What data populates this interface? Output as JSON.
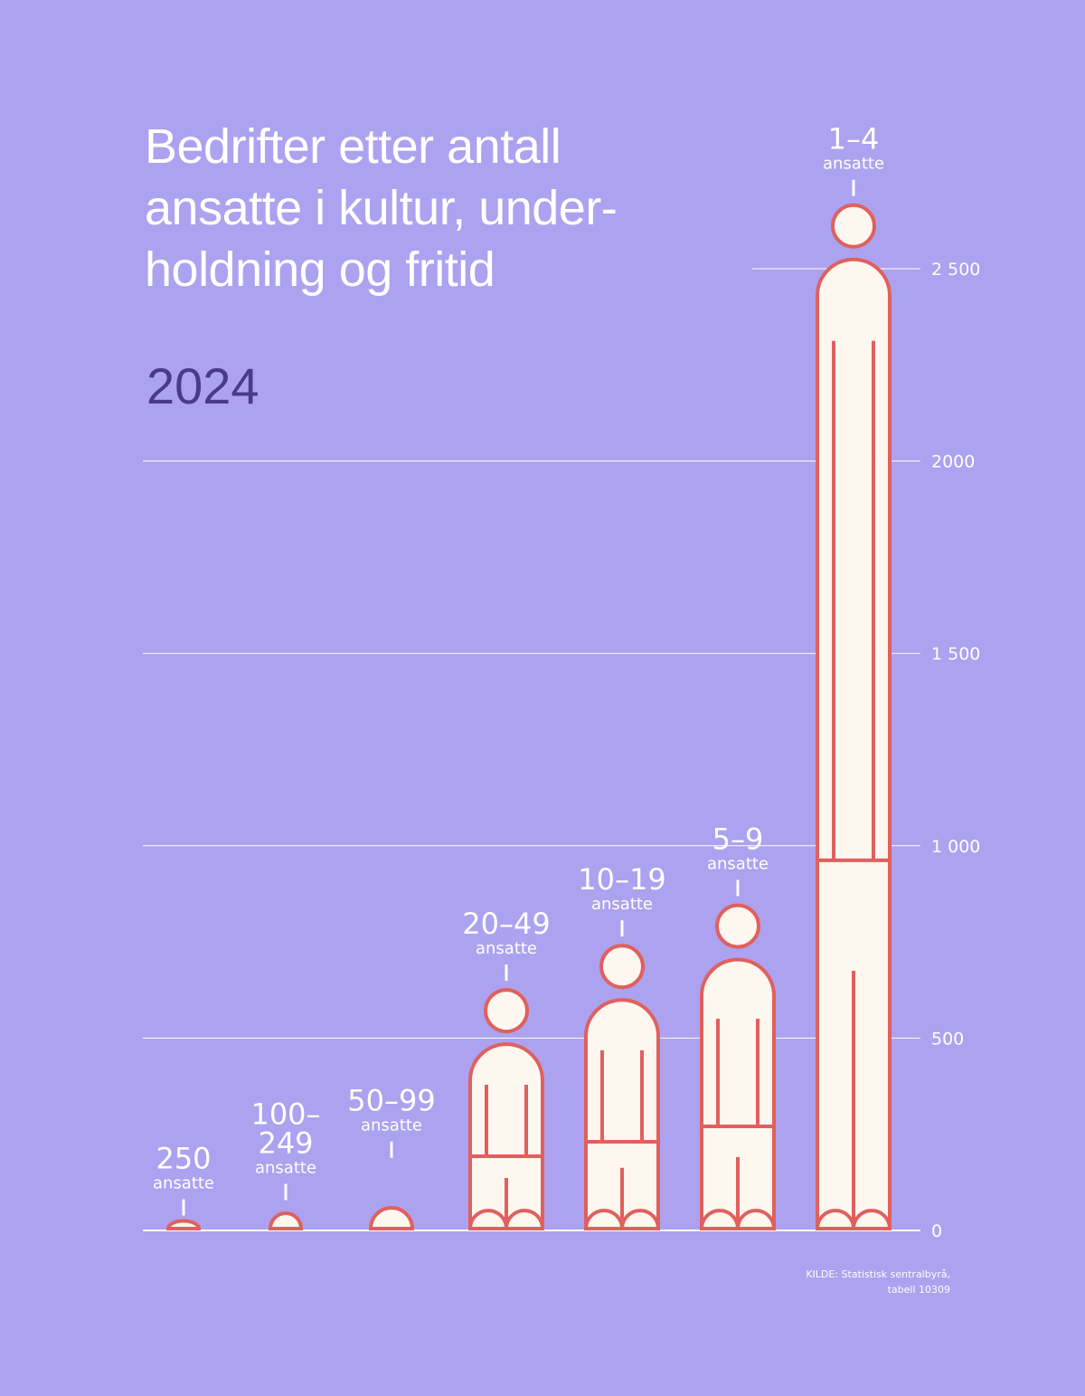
{
  "header": {
    "title": "Bedrifter etter antall ansatte i kultur, underholdning og fritid",
    "title_lines": [
      "Bedrifter etter antall",
      "ansatte i kultur, under-",
      "holdning og fritid"
    ],
    "year": "2024"
  },
  "source": {
    "line1": "KILDE: Statistisk sentralbyrå,",
    "line2": "tabell 10309"
  },
  "colors": {
    "background": "#aca2ef",
    "figure_fill": "#fdf7f0",
    "figure_stroke": "#e0605e",
    "text": "#ffffff",
    "year": "#4a3a8c",
    "gridline": "#ffffff"
  },
  "chart_data": {
    "type": "bar",
    "title": "Bedrifter etter antall ansatte i kultur, underholdning og fritid",
    "subtitle": "2024",
    "xlabel": "",
    "ylabel": "",
    "ylim": [
      0,
      2500
    ],
    "yticks": [
      0,
      500,
      1000,
      1500,
      2000,
      2500
    ],
    "ytick_labels": [
      "0",
      "500",
      "1 000",
      "1 500",
      "2000",
      "2 500"
    ],
    "grid": true,
    "legend": null,
    "unit_label": "ansatte",
    "categories": [
      "250",
      "100–249",
      "50–99",
      "20–49",
      "10–19",
      "5–9",
      "1–4"
    ],
    "category_lines": [
      [
        "250"
      ],
      [
        "100–",
        "249"
      ],
      [
        "50–99"
      ],
      [
        "20–49"
      ],
      [
        "10–19"
      ],
      [
        "5–9"
      ],
      [
        "1–4"
      ]
    ],
    "values": [
      20,
      60,
      170,
      630,
      745,
      850,
      2670
    ],
    "annotation": "Bars drawn as human figures; figure height (incl. head) ≈ number of businesses"
  }
}
